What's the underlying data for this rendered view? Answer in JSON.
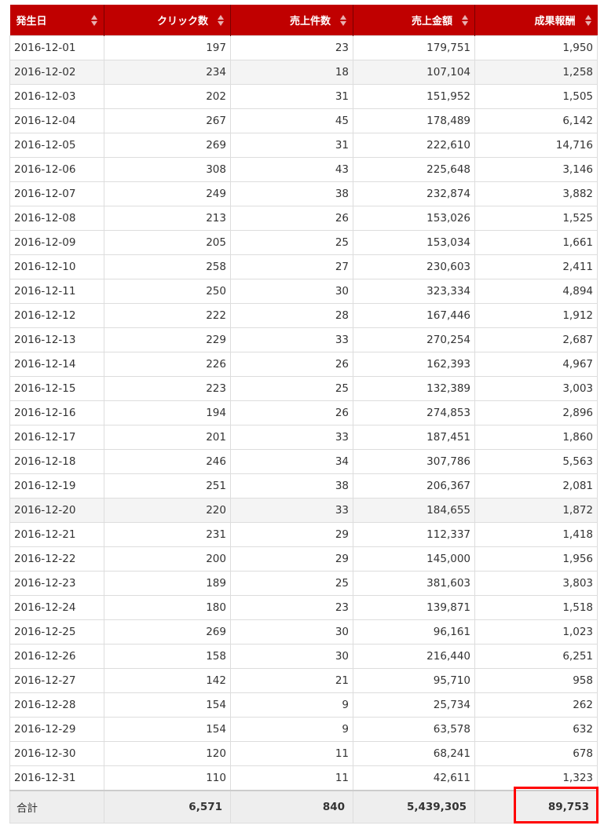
{
  "table": {
    "headers": [
      "発生日",
      "クリック数",
      "売上件数",
      "売上金額",
      "成果報酬"
    ],
    "rows": [
      [
        "2016-12-01",
        "197",
        "23",
        "179,751",
        "1,950"
      ],
      [
        "2016-12-02",
        "234",
        "18",
        "107,104",
        "1,258"
      ],
      [
        "2016-12-03",
        "202",
        "31",
        "151,952",
        "1,505"
      ],
      [
        "2016-12-04",
        "267",
        "45",
        "178,489",
        "6,142"
      ],
      [
        "2016-12-05",
        "269",
        "31",
        "222,610",
        "14,716"
      ],
      [
        "2016-12-06",
        "308",
        "43",
        "225,648",
        "3,146"
      ],
      [
        "2016-12-07",
        "249",
        "38",
        "232,874",
        "3,882"
      ],
      [
        "2016-12-08",
        "213",
        "26",
        "153,026",
        "1,525"
      ],
      [
        "2016-12-09",
        "205",
        "25",
        "153,034",
        "1,661"
      ],
      [
        "2016-12-10",
        "258",
        "27",
        "230,603",
        "2,411"
      ],
      [
        "2016-12-11",
        "250",
        "30",
        "323,334",
        "4,894"
      ],
      [
        "2016-12-12",
        "222",
        "28",
        "167,446",
        "1,912"
      ],
      [
        "2016-12-13",
        "229",
        "33",
        "270,254",
        "2,687"
      ],
      [
        "2016-12-14",
        "226",
        "26",
        "162,393",
        "4,967"
      ],
      [
        "2016-12-15",
        "223",
        "25",
        "132,389",
        "3,003"
      ],
      [
        "2016-12-16",
        "194",
        "26",
        "274,853",
        "2,896"
      ],
      [
        "2016-12-17",
        "201",
        "33",
        "187,451",
        "1,860"
      ],
      [
        "2016-12-18",
        "246",
        "34",
        "307,786",
        "5,563"
      ],
      [
        "2016-12-19",
        "251",
        "38",
        "206,367",
        "2,081"
      ],
      [
        "2016-12-20",
        "220",
        "33",
        "184,655",
        "1,872"
      ],
      [
        "2016-12-21",
        "231",
        "29",
        "112,337",
        "1,418"
      ],
      [
        "2016-12-22",
        "200",
        "29",
        "145,000",
        "1,956"
      ],
      [
        "2016-12-23",
        "189",
        "25",
        "381,603",
        "3,803"
      ],
      [
        "2016-12-24",
        "180",
        "23",
        "139,871",
        "1,518"
      ],
      [
        "2016-12-25",
        "269",
        "30",
        "96,161",
        "1,023"
      ],
      [
        "2016-12-26",
        "158",
        "30",
        "216,440",
        "6,251"
      ],
      [
        "2016-12-27",
        "142",
        "21",
        "95,710",
        "958"
      ],
      [
        "2016-12-28",
        "154",
        "9",
        "25,734",
        "262"
      ],
      [
        "2016-12-29",
        "154",
        "9",
        "63,578",
        "632"
      ],
      [
        "2016-12-30",
        "120",
        "11",
        "68,241",
        "678"
      ],
      [
        "2016-12-31",
        "110",
        "11",
        "42,611",
        "1,323"
      ]
    ],
    "shaded_rows": [
      1,
      19
    ],
    "footer": [
      "合計",
      "6,571",
      "840",
      "5,439,305",
      "89,753"
    ]
  },
  "colors": {
    "header_bg": "#c00000",
    "highlight_box": "#ff0000"
  },
  "icons": {
    "sort": "sort-up-down-icon"
  }
}
